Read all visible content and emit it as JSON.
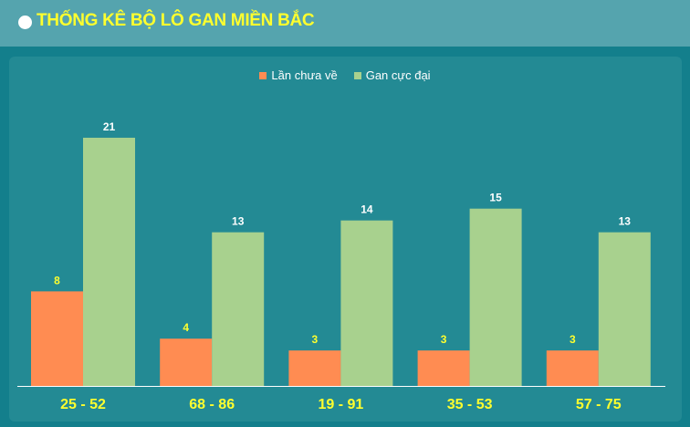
{
  "header": {
    "title": "THỐNG KÊ BỘ LÔ GAN MIỀN BẮC"
  },
  "colors": {
    "series_1": "#ff8c52",
    "series_2": "#a8d18e",
    "category_label": "#ffff2e",
    "value_label_series_1": "#ffff2e",
    "value_label_series_2": "#ffffff"
  },
  "chart_data": {
    "type": "bar",
    "categories": [
      "25 - 52",
      "68 - 86",
      "19 - 91",
      "35 - 53",
      "57 - 75"
    ],
    "series": [
      {
        "name": "Lần chưa về",
        "values": [
          8,
          4,
          3,
          3,
          3
        ]
      },
      {
        "name": "Gan cực đại",
        "values": [
          21,
          13,
          14,
          15,
          13
        ]
      }
    ],
    "ylim": [
      0,
      22
    ],
    "grid": false,
    "legend_position": "top-center"
  }
}
